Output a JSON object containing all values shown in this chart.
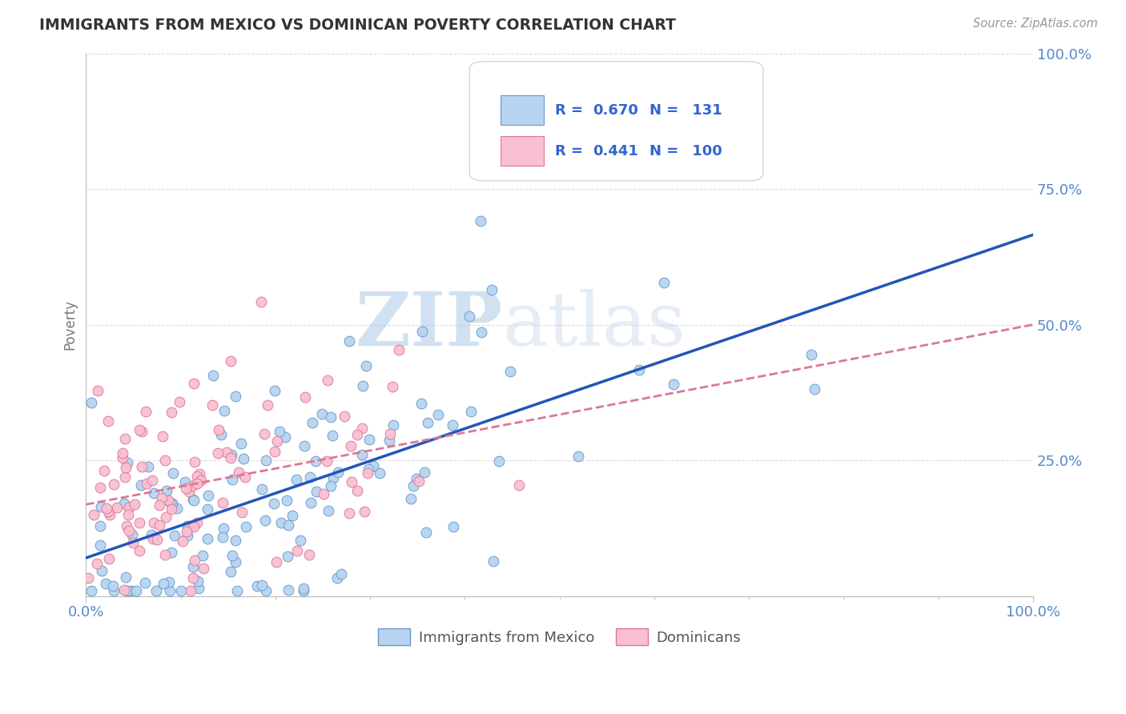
{
  "title": "IMMIGRANTS FROM MEXICO VS DOMINICAN POVERTY CORRELATION CHART",
  "source": "Source: ZipAtlas.com",
  "ylabel": "Poverty",
  "series": [
    {
      "name": "Immigrants from Mexico",
      "R": 0.67,
      "N": 131,
      "color": "#b8d4f0",
      "edge_color": "#6699cc",
      "line_color": "#2255bb",
      "line_style": "solid"
    },
    {
      "name": "Dominicans",
      "R": 0.441,
      "N": 100,
      "color": "#f8c0d0",
      "edge_color": "#dd7799",
      "line_color": "#dd7799",
      "line_style": "dashed"
    }
  ],
  "xlim": [
    0,
    1
  ],
  "ylim": [
    0,
    1
  ],
  "ytick_positions": [
    0,
    0.25,
    0.5,
    0.75,
    1.0
  ],
  "ytick_labels": [
    "",
    "25.0%",
    "50.0%",
    "75.0%",
    "100.0%"
  ],
  "xtick_positions": [
    0.0,
    1.0
  ],
  "xtick_labels": [
    "0.0%",
    "100.0%"
  ],
  "background_color": "#ffffff",
  "title_color": "#333333",
  "axis_color": "#bbbbbb",
  "label_color": "#5588cc",
  "grid_color": "#dddddd",
  "mexico_trend": [
    0.08,
    0.62
  ],
  "dominican_trend": [
    0.16,
    0.4
  ]
}
